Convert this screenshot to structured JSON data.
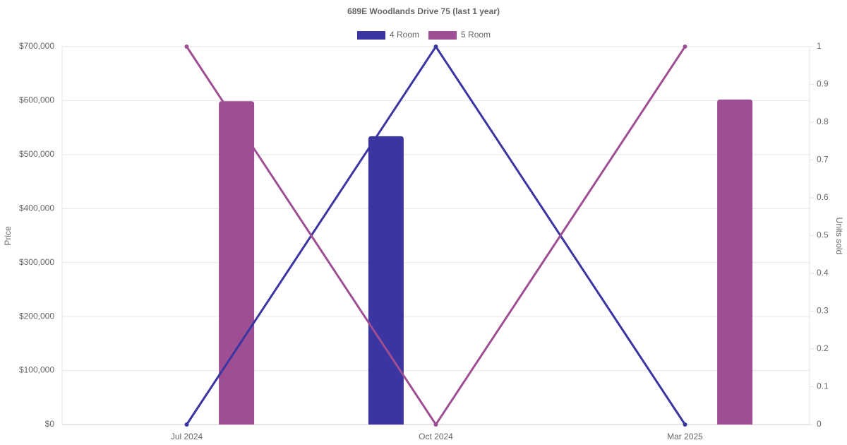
{
  "chart_data": {
    "type": "bar-line",
    "title": "689E Woodlands Drive 75 (last 1 year)",
    "ylabel": "Price",
    "y2label": "Units sold",
    "categories": [
      "Jul 2024",
      "Oct 2024",
      "Mar 2025"
    ],
    "series": [
      {
        "name": "4 Room",
        "color": "#3a35a0",
        "values": [
          null,
          534000,
          null
        ],
        "units": [
          0,
          1,
          0
        ]
      },
      {
        "name": "5 Room",
        "color": "#9e4f94",
        "values": [
          599000,
          null,
          602000
        ],
        "units": [
          1,
          0,
          1
        ]
      }
    ],
    "ylim": [
      0,
      700000
    ],
    "yticks": [
      {
        "value": 0,
        "label": "$0"
      },
      {
        "value": 100000,
        "label": "$100,000"
      },
      {
        "value": 200000,
        "label": "$200,000"
      },
      {
        "value": 300000,
        "label": "$300,000"
      },
      {
        "value": 400000,
        "label": "$400,000"
      },
      {
        "value": 500000,
        "label": "$500,000"
      },
      {
        "value": 600000,
        "label": "$600,000"
      },
      {
        "value": 700000,
        "label": "$700,000"
      }
    ],
    "y2lim": [
      0,
      1
    ],
    "y2ticks": [
      0,
      0.1,
      0.2,
      0.3,
      0.4,
      0.5,
      0.6,
      0.7,
      0.8,
      0.9,
      1
    ],
    "grid": true
  }
}
